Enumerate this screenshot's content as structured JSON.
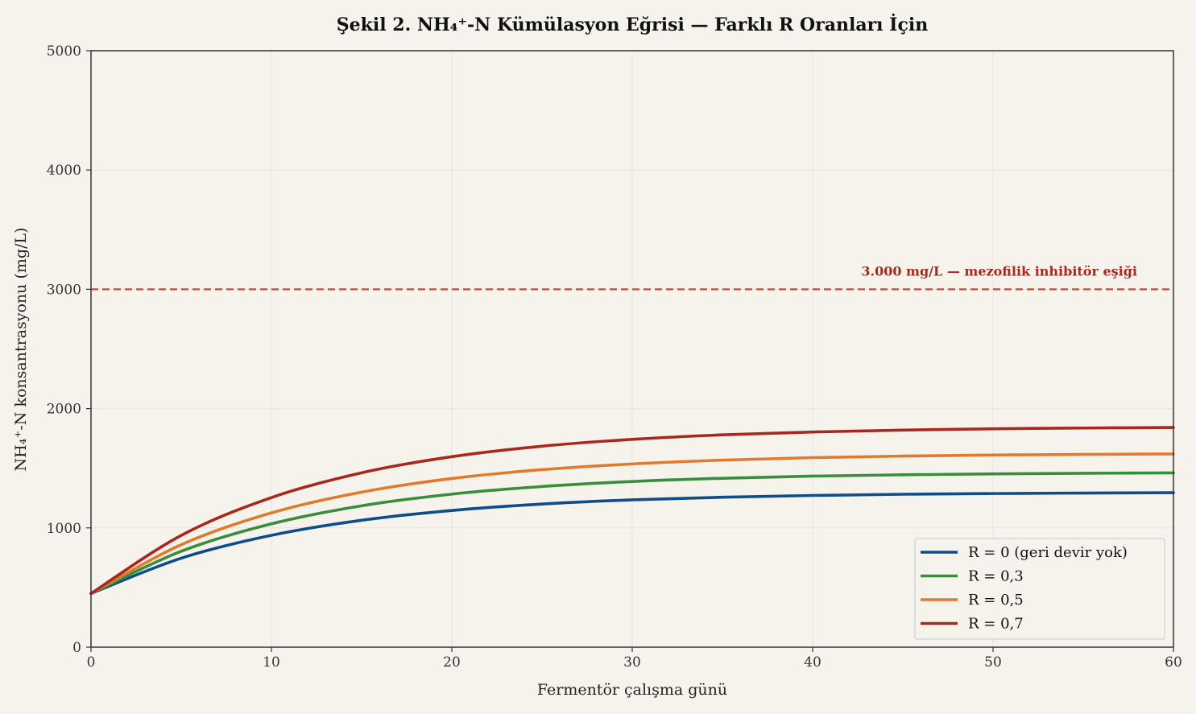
{
  "chart_data": {
    "type": "line",
    "title": "Şekil 2. NH₄⁺-N Kümülasyon Eğrisi — Farklı R Oranları İçin",
    "xlabel": "Fermentör çalışma günü",
    "ylabel": "NH₄⁺-N konsantrasyonu (mg/L)",
    "xlim": [
      0,
      60
    ],
    "ylim": [
      0,
      5000
    ],
    "xticks": [
      0,
      10,
      20,
      30,
      40,
      50,
      60
    ],
    "yticks": [
      0,
      1000,
      2000,
      3000,
      4000,
      5000
    ],
    "grid": true,
    "legend_position": "lower-right",
    "x": [
      0,
      5,
      10,
      15,
      20,
      25,
      30,
      35,
      40,
      45,
      50,
      55,
      60
    ],
    "series": [
      {
        "name": "R = 0  (geri devir yok)",
        "color": "#0f4c8a",
        "values": [
          450,
          746,
          938,
          1064,
          1146,
          1200,
          1235,
          1257,
          1272,
          1282,
          1288,
          1292,
          1295
        ]
      },
      {
        "name": "R = 0,3",
        "color": "#388e3c",
        "values": [
          450,
          804,
          1034,
          1185,
          1283,
          1347,
          1389,
          1416,
          1434,
          1445,
          1453,
          1458,
          1461
        ]
      },
      {
        "name": "R = 0,5",
        "color": "#e07a2f",
        "values": [
          450,
          859,
          1126,
          1300,
          1414,
          1488,
          1536,
          1568,
          1589,
          1602,
          1611,
          1616,
          1620
        ]
      },
      {
        "name": "R = 0,7",
        "color": "#a8281f",
        "values": [
          450,
          937,
          1254,
          1462,
          1597,
          1685,
          1742,
          1780,
          1804,
          1820,
          1831,
          1837,
          1842
        ]
      }
    ],
    "threshold": {
      "value": 3000,
      "label": "3.000 mg/L — mezofilik inhibitör eşiği",
      "color": "#c8473d"
    }
  }
}
